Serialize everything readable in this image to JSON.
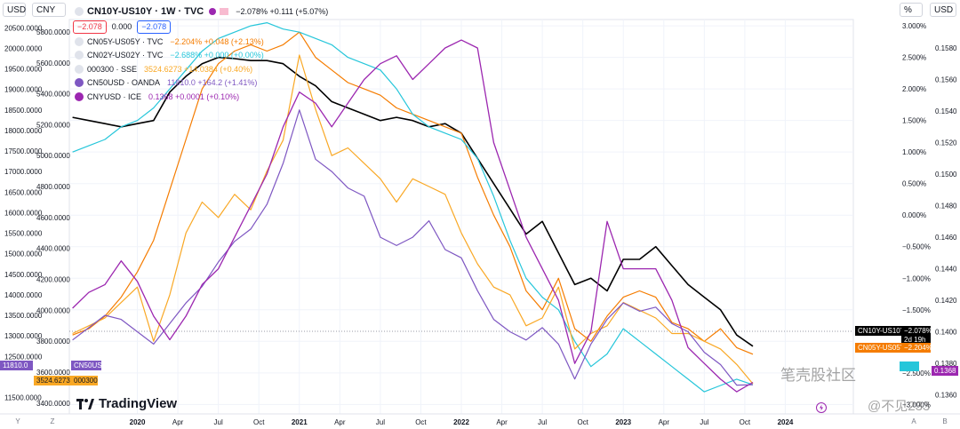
{
  "toolbar": {
    "left_currency": "USD",
    "left_currency2": "CNY",
    "right_percent": "%",
    "right_currency": "USD",
    "bottom_left_y": "Y",
    "bottom_left_z": "Z",
    "bottom_right_a": "A",
    "bottom_right_b": "B"
  },
  "legend": {
    "main": {
      "name": "CN10Y-US10Y · 1W · TVC",
      "values": "−2.078% +0.111 (+5.07%)",
      "box1": "−2.078",
      "box_mid": "0.000",
      "box2": "−2.078"
    },
    "items": [
      {
        "name": "CN05Y-US05Y · TVC",
        "values": "−2.204% +0.048 (+2.13%)",
        "color": "#f57c00"
      },
      {
        "name": "CN02Y-US02Y · TVC",
        "values": "−2.688% +0.000 (+0.00%)",
        "color": "#26c6da"
      },
      {
        "name": "000300 · SSE",
        "values": "3524.6273 +14.0384 (+0.40%)",
        "color": "#f9a825"
      },
      {
        "name": "CN50USD · OANDA",
        "values": "11810.0 +164.2 (+1.41%)",
        "color": "#7e57c2"
      },
      {
        "name": "CNYUSD · ICE",
        "values": "0.1368 +0.0001 (+0.10%)",
        "color": "#9c27b0"
      }
    ]
  },
  "axis_tags": {
    "cn50": "11810.0",
    "cn50_label": "CN50USD",
    "hs300": "3524.6273",
    "hs300_label": "000300",
    "main_label": "CN10Y-US10Y",
    "main_value": "−2.078%",
    "main_time": "2d 19h",
    "cn05_label": "CN05Y-US05Y",
    "cn05_value": "−2.204%",
    "cny_value": "0.1368"
  },
  "branding": {
    "logo_text": "TradingView",
    "watermark1": "笔壳股社区",
    "watermark2": "@不见233"
  },
  "colors": {
    "main": "#000000",
    "cn05": "#f57c00",
    "cn02": "#26c6da",
    "hs300": "#f9a825",
    "cn50": "#7e57c2",
    "cny": "#9c27b0"
  },
  "chart_data": {
    "type": "line",
    "title": "CN10Y-US10Y · 1W · TVC",
    "x_ticks": [
      "2020",
      "Apr",
      "Jul",
      "Oct",
      "2021",
      "Apr",
      "Jul",
      "Oct",
      "2022",
      "Apr",
      "Jul",
      "Oct",
      "2023",
      "Apr",
      "Jul",
      "Oct",
      "2024"
    ],
    "x_tick_t": [
      0.0,
      0.25,
      0.5,
      0.75,
      1.0,
      1.25,
      1.5,
      1.75,
      2.0,
      2.25,
      2.5,
      2.75,
      3.0,
      3.25,
      3.5,
      3.75,
      4.0
    ],
    "x_range": [
      -0.42,
      4.42
    ],
    "x_note": "t = years since 2020",
    "axes": {
      "pct_left": {
        "ticks": [
          "20500.0000",
          "20000.0000",
          "19500.0000",
          "19000.0000",
          "18500.0000",
          "18000.0000",
          "17500.0000",
          "17000.0000",
          "16500.0000",
          "16000.0000",
          "15500.0000",
          "15000.0000",
          "14500.0000",
          "14000.0000",
          "13500.0000",
          "13000.0000",
          "12500.0000",
          "11500.0000"
        ],
        "values": [
          20500,
          20000,
          19500,
          19000,
          18500,
          18000,
          17500,
          17000,
          16500,
          16000,
          15500,
          15000,
          14500,
          14000,
          13500,
          13000,
          12500,
          11500
        ],
        "range": [
          11100,
          20700
        ]
      },
      "cny_left": {
        "ticks": [
          "5800.0000",
          "5600.0000",
          "5400.0000",
          "5200.0000",
          "5000.0000",
          "4800.0000",
          "4600.0000",
          "4400.0000",
          "4200.0000",
          "4000.0000",
          "3800.0000",
          "3600.0000",
          "3400.0000"
        ],
        "values": [
          5800,
          5600,
          5400,
          5200,
          5000,
          4800,
          4600,
          4400,
          4200,
          4000,
          3800,
          3600,
          3400
        ],
        "range": [
          3330,
          5880
        ]
      },
      "pct_right": {
        "ticks": [
          "3.000%",
          "2.500%",
          "2.000%",
          "1.500%",
          "1.000%",
          "0.500%",
          "0.000%",
          "−0.500%",
          "−1.000%",
          "−1.500%",
          "−2.000%",
          "−2.500%",
          "−3.000%"
        ],
        "values": [
          3,
          2.5,
          2,
          1.5,
          1,
          0.5,
          0,
          -0.5,
          -1,
          -1.5,
          -2,
          -2.5,
          -3
        ],
        "range": [
          -3.15,
          3.1
        ]
      },
      "usd_right": {
        "ticks": [
          "0.1580",
          "0.1560",
          "0.1540",
          "0.1520",
          "0.1500",
          "0.1480",
          "0.1460",
          "0.1440",
          "0.1420",
          "0.1400",
          "0.1380",
          "0.1360"
        ],
        "values": [
          0.158,
          0.156,
          0.154,
          0.152,
          0.15,
          0.148,
          0.146,
          0.144,
          0.142,
          0.14,
          0.138,
          0.136
        ],
        "range": [
          0.1348,
          0.1598
        ]
      }
    },
    "series": [
      {
        "name": "CN10Y-US10Y",
        "axis": "pct_right",
        "color": "#000000",
        "width": 1.6,
        "x": [
          -0.4,
          -0.3,
          -0.2,
          -0.1,
          0.0,
          0.1,
          0.2,
          0.3,
          0.4,
          0.5,
          0.6,
          0.7,
          0.8,
          0.9,
          1.0,
          1.1,
          1.2,
          1.3,
          1.4,
          1.5,
          1.6,
          1.7,
          1.8,
          1.9,
          2.0,
          2.1,
          2.2,
          2.3,
          2.4,
          2.5,
          2.6,
          2.7,
          2.8,
          2.9,
          3.0,
          3.1,
          3.2,
          3.3,
          3.4,
          3.5,
          3.6,
          3.7,
          3.8
        ],
        "y": [
          1.55,
          1.5,
          1.45,
          1.4,
          1.45,
          1.5,
          1.95,
          2.2,
          2.4,
          2.5,
          2.48,
          2.45,
          2.45,
          2.4,
          2.2,
          2.05,
          1.8,
          1.7,
          1.6,
          1.5,
          1.55,
          1.5,
          1.4,
          1.45,
          1.3,
          0.9,
          0.5,
          0.1,
          -0.3,
          -0.1,
          -0.6,
          -1.1,
          -1.0,
          -1.2,
          -0.7,
          -0.7,
          -0.5,
          -0.8,
          -1.1,
          -1.3,
          -1.5,
          -1.9,
          -2.078
        ]
      },
      {
        "name": "CN05Y-US05Y",
        "axis": "pct_right",
        "color": "#f57c00",
        "width": 1.2,
        "x": [
          -0.4,
          -0.3,
          -0.2,
          -0.1,
          0.0,
          0.1,
          0.2,
          0.3,
          0.4,
          0.5,
          0.6,
          0.7,
          0.8,
          0.9,
          1.0,
          1.1,
          1.2,
          1.3,
          1.4,
          1.5,
          1.6,
          1.7,
          1.8,
          1.9,
          2.0,
          2.1,
          2.2,
          2.3,
          2.4,
          2.5,
          2.6,
          2.7,
          2.8,
          2.9,
          3.0,
          3.1,
          3.2,
          3.3,
          3.4,
          3.5,
          3.6,
          3.7,
          3.8
        ],
        "y": [
          -1.9,
          -1.8,
          -1.6,
          -1.3,
          -0.9,
          -0.4,
          0.4,
          1.2,
          2.0,
          2.4,
          2.6,
          2.7,
          2.6,
          2.7,
          2.9,
          2.5,
          2.3,
          2.1,
          2.0,
          1.9,
          1.7,
          1.6,
          1.5,
          1.4,
          1.3,
          0.6,
          0.0,
          -0.5,
          -1.2,
          -1.5,
          -1.0,
          -1.8,
          -2.0,
          -1.6,
          -1.3,
          -1.2,
          -1.3,
          -1.7,
          -1.8,
          -2.0,
          -1.8,
          -2.1,
          -2.204
        ]
      },
      {
        "name": "CN02Y-US02Y",
        "axis": "pct_right",
        "color": "#26c6da",
        "width": 1.2,
        "x": [
          -0.4,
          -0.3,
          -0.2,
          -0.1,
          0.0,
          0.1,
          0.2,
          0.3,
          0.4,
          0.5,
          0.6,
          0.7,
          0.8,
          0.9,
          1.0,
          1.1,
          1.2,
          1.3,
          1.4,
          1.5,
          1.6,
          1.7,
          1.8,
          1.9,
          2.0,
          2.1,
          2.2,
          2.3,
          2.4,
          2.5,
          2.6,
          2.7,
          2.8,
          2.9,
          3.0,
          3.1,
          3.2,
          3.3,
          3.4,
          3.5,
          3.6,
          3.7,
          3.8
        ],
        "y": [
          1.0,
          1.1,
          1.2,
          1.4,
          1.5,
          1.7,
          2.0,
          2.3,
          2.6,
          2.8,
          2.9,
          3.0,
          3.05,
          2.95,
          2.9,
          2.8,
          2.7,
          2.5,
          2.4,
          2.3,
          2.0,
          1.6,
          1.4,
          1.3,
          1.2,
          0.9,
          0.3,
          -0.4,
          -1.0,
          -1.3,
          -1.5,
          -2.0,
          -2.4,
          -2.2,
          -1.8,
          -2.0,
          -2.2,
          -2.4,
          -2.6,
          -2.8,
          -2.7,
          -2.6,
          -2.688
        ]
      },
      {
        "name": "000300",
        "axis": "cny_left",
        "color": "#f9a825",
        "width": 1.2,
        "x": [
          -0.4,
          -0.3,
          -0.2,
          -0.1,
          0.0,
          0.1,
          0.2,
          0.3,
          0.4,
          0.5,
          0.6,
          0.7,
          0.8,
          0.9,
          1.0,
          1.1,
          1.2,
          1.3,
          1.4,
          1.5,
          1.6,
          1.7,
          1.8,
          1.9,
          2.0,
          2.1,
          2.2,
          2.3,
          2.4,
          2.5,
          2.6,
          2.7,
          2.8,
          2.9,
          3.0,
          3.1,
          3.2,
          3.3,
          3.4,
          3.5,
          3.6,
          3.7,
          3.8
        ],
        "y": [
          3850,
          3900,
          3950,
          4050,
          4150,
          3800,
          4100,
          4500,
          4700,
          4600,
          4750,
          4650,
          4900,
          5100,
          5650,
          5300,
          5000,
          5050,
          4950,
          4850,
          4700,
          4850,
          4800,
          4750,
          4500,
          4300,
          4150,
          4100,
          3900,
          3950,
          4150,
          3750,
          3850,
          3900,
          4050,
          4000,
          3950,
          3850,
          3850,
          3800,
          3750,
          3650,
          3524.6
        ]
      },
      {
        "name": "CN50USD",
        "axis": "pct_left",
        "color": "#7e57c2",
        "width": 1.2,
        "x": [
          -0.4,
          -0.3,
          -0.2,
          -0.1,
          0.0,
          0.1,
          0.2,
          0.3,
          0.4,
          0.5,
          0.6,
          0.7,
          0.8,
          0.9,
          1.0,
          1.1,
          1.2,
          1.3,
          1.4,
          1.5,
          1.6,
          1.7,
          1.8,
          1.9,
          2.0,
          2.1,
          2.2,
          2.3,
          2.4,
          2.5,
          2.6,
          2.7,
          2.8,
          2.9,
          3.0,
          3.1,
          3.2,
          3.3,
          3.4,
          3.5,
          3.6,
          3.7,
          3.8
        ],
        "y": [
          12900,
          13200,
          13500,
          13400,
          13100,
          12800,
          13300,
          13800,
          14200,
          14800,
          15300,
          15600,
          16200,
          17200,
          18500,
          17300,
          17000,
          16600,
          16400,
          15400,
          15200,
          15400,
          15800,
          15100,
          14900,
          14100,
          13400,
          13100,
          12900,
          13200,
          12800,
          11950,
          12800,
          13400,
          13800,
          13600,
          13700,
          13300,
          13100,
          12600,
          12300,
          11800,
          11810
        ]
      },
      {
        "name": "CNYUSD",
        "axis": "usd_right",
        "color": "#9c27b0",
        "width": 1.3,
        "x": [
          -0.4,
          -0.3,
          -0.2,
          -0.1,
          0.0,
          0.1,
          0.2,
          0.3,
          0.4,
          0.5,
          0.6,
          0.7,
          0.8,
          0.9,
          1.0,
          1.1,
          1.2,
          1.3,
          1.4,
          1.5,
          1.6,
          1.7,
          1.8,
          1.9,
          2.0,
          2.1,
          2.2,
          2.3,
          2.4,
          2.5,
          2.6,
          2.7,
          2.8,
          2.9,
          3.0,
          3.1,
          3.2,
          3.3,
          3.4,
          3.5,
          3.6,
          3.7,
          3.8
        ],
        "y": [
          0.1415,
          0.1425,
          0.143,
          0.1445,
          0.1432,
          0.141,
          0.1395,
          0.141,
          0.143,
          0.144,
          0.146,
          0.148,
          0.15,
          0.153,
          0.1552,
          0.1545,
          0.153,
          0.1545,
          0.156,
          0.157,
          0.1575,
          0.156,
          0.157,
          0.158,
          0.1585,
          0.158,
          0.152,
          0.149,
          0.146,
          0.144,
          0.142,
          0.138,
          0.14,
          0.147,
          0.144,
          0.144,
          0.144,
          0.142,
          0.139,
          0.138,
          0.137,
          0.1362,
          0.1368
        ]
      }
    ]
  }
}
